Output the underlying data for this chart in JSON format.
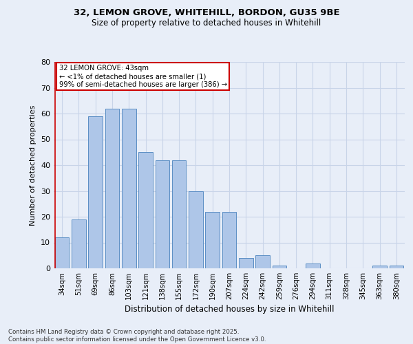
{
  "title_line1": "32, LEMON GROVE, WHITEHILL, BORDON, GU35 9BE",
  "title_line2": "Size of property relative to detached houses in Whitehill",
  "xlabel": "Distribution of detached houses by size in Whitehill",
  "ylabel": "Number of detached properties",
  "categories": [
    "34sqm",
    "51sqm",
    "69sqm",
    "86sqm",
    "103sqm",
    "121sqm",
    "138sqm",
    "155sqm",
    "172sqm",
    "190sqm",
    "207sqm",
    "224sqm",
    "242sqm",
    "259sqm",
    "276sqm",
    "294sqm",
    "311sqm",
    "328sqm",
    "345sqm",
    "363sqm",
    "380sqm"
  ],
  "values": [
    12,
    19,
    59,
    62,
    62,
    45,
    42,
    42,
    30,
    22,
    22,
    4,
    5,
    1,
    0,
    2,
    0,
    0,
    0,
    1,
    1
  ],
  "bar_color": "#aec6e8",
  "bar_edge_color": "#5b8ec4",
  "annotation_line1": "32 LEMON GROVE: 43sqm",
  "annotation_line2": "← <1% of detached houses are smaller (1)",
  "annotation_line3": "99% of semi-detached houses are larger (386) →",
  "annotation_box_color": "#ffffff",
  "annotation_edge_color": "#cc0000",
  "ylim": [
    0,
    80
  ],
  "yticks": [
    0,
    10,
    20,
    30,
    40,
    50,
    60,
    70,
    80
  ],
  "grid_color": "#c8d4e8",
  "background_color": "#e8eef8",
  "footnote_line1": "Contains HM Land Registry data © Crown copyright and database right 2025.",
  "footnote_line2": "Contains public sector information licensed under the Open Government Licence v3.0."
}
